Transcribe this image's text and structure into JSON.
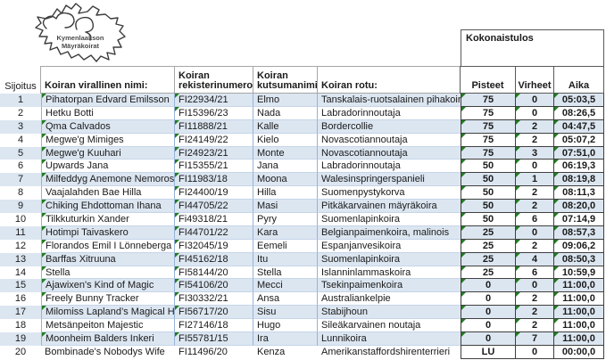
{
  "logo": {
    "line1": "Kymenlaakson",
    "line2": "Mäyräkoirat"
  },
  "headers": {
    "rank": "Sijoitus",
    "official_name": "Koiran virallinen nimi:",
    "reg_number": "Koiran\nrekisterinumero:",
    "call_name": "Koiran\nkutsumanimi:",
    "breed": "Koiran rotu:",
    "total": "Kokonaistulos",
    "points": "Pisteet",
    "faults": "Virheet",
    "time": "Aika"
  },
  "colors": {
    "band": "#dce6f1",
    "band_line": "#c5d5e8",
    "col_line": "#95b3d7",
    "head_line": "#a6a6a6",
    "res_line": "#3f3f3f",
    "flag": "#217c21",
    "text": "#1a1a1a"
  },
  "rows": [
    {
      "rank": "1",
      "name": "Pihatorpan Edvard Emilsson",
      "reg": "FI22934/21",
      "call": "Elmo",
      "breed": "Tanskalais-ruotsalainen pihakoira",
      "points": "75",
      "faults": "0",
      "time": "05:03,5",
      "flag_name": true,
      "flag_reg": true,
      "flag_results": true
    },
    {
      "rank": "2",
      "name": "Hetku Botti",
      "reg": "FI15396/23",
      "call": "Nada",
      "breed": "Labradorinnoutaja",
      "points": "75",
      "faults": "0",
      "time": "08:26,5",
      "flag_name": false,
      "flag_reg": true,
      "flag_results": true
    },
    {
      "rank": "3",
      "name": "Qma Calvados",
      "reg": "FI11888/21",
      "call": "Kalle",
      "breed": "Bordercollie",
      "points": "75",
      "faults": "2",
      "time": "04:47,5",
      "flag_name": true,
      "flag_reg": true,
      "flag_results": true
    },
    {
      "rank": "4",
      "name": "Megwe'g Mimiges",
      "reg": "FI24149/22",
      "call": "Kielo",
      "breed": "Novascotiannoutaja",
      "points": "75",
      "faults": "2",
      "time": "05:07,2",
      "flag_name": true,
      "flag_reg": true,
      "flag_results": true
    },
    {
      "rank": "5",
      "name": "Megwe'g Kuuhari",
      "reg": "FI24923/21",
      "call": "Monte",
      "breed": "Novascotiannoutaja",
      "points": "75",
      "faults": "3",
      "time": "07:51,0",
      "flag_name": true,
      "flag_reg": true,
      "flag_results": true
    },
    {
      "rank": "6",
      "name": "Upwards Jana",
      "reg": "FI15355/21",
      "call": "Jana",
      "breed": "Labradorinnoutaja",
      "points": "50",
      "faults": "0",
      "time": "06:19,3",
      "flag_name": true,
      "flag_reg": true,
      "flag_results": true
    },
    {
      "rank": "7",
      "name": "Milfeddyg Anemone Nemorosa",
      "reg": "FI11983/18",
      "call": "Moona",
      "breed": "Walesinspringerspanieli",
      "points": "50",
      "faults": "1",
      "time": "08:19,8",
      "flag_name": true,
      "flag_reg": true,
      "flag_results": true
    },
    {
      "rank": "8",
      "name": "Vaajalahden Bae Hilla",
      "reg": "FI24400/19",
      "call": "Hilla",
      "breed": "Suomenpystykorva",
      "points": "50",
      "faults": "2",
      "time": "08:11,3",
      "flag_name": false,
      "flag_reg": true,
      "flag_results": true
    },
    {
      "rank": "9",
      "name": "Chiking Ehdottoman Ihana",
      "reg": "FI44705/22",
      "call": "Masi",
      "breed": "Pitkäkarvainen mäyräkoira",
      "points": "50",
      "faults": "2",
      "time": "08:20,0",
      "flag_name": true,
      "flag_reg": true,
      "flag_results": true
    },
    {
      "rank": "10",
      "name": "Tilkkuturkin Xander",
      "reg": "Fi49318/21",
      "call": "Pyry",
      "breed": "Suomenlapinkoira",
      "points": "50",
      "faults": "6",
      "time": "07:14,9",
      "flag_name": true,
      "flag_reg": true,
      "flag_results": true
    },
    {
      "rank": "11",
      "name": "Hotimpi Taivaskero",
      "reg": "FI44701/22",
      "call": "Kara",
      "breed": "Belgianpaimenkoira, malinois",
      "points": "25",
      "faults": "0",
      "time": "08:57,3",
      "flag_name": true,
      "flag_reg": true,
      "flag_results": true
    },
    {
      "rank": "12",
      "name": "Florandos Emil I Lönneberga",
      "reg": "FI32045/19",
      "call": "Eemeli",
      "breed": "Espanjanvesikoira",
      "points": "25",
      "faults": "2",
      "time": "09:06,2",
      "flag_name": true,
      "flag_reg": true,
      "flag_results": true
    },
    {
      "rank": "13",
      "name": "Barffas Xitruuna",
      "reg": "FI45162/18",
      "call": "Itu",
      "breed": "Suomenlapinkoira",
      "points": "25",
      "faults": "4",
      "time": "08:50,3",
      "flag_name": true,
      "flag_reg": true,
      "flag_results": true
    },
    {
      "rank": "14",
      "name": "Stella",
      "reg": "FI58144/20",
      "call": "Stella",
      "breed": "Islanninlammaskoira",
      "points": "25",
      "faults": "6",
      "time": "10:59,9",
      "flag_name": true,
      "flag_reg": true,
      "flag_results": true
    },
    {
      "rank": "15",
      "name": "Ajawixen's Kind of Magic",
      "reg": "FI54106/20",
      "call": "Mecci",
      "breed": "Tsekinpaimenkoira",
      "points": "0",
      "faults": "0",
      "time": "11:00,0",
      "flag_name": true,
      "flag_reg": true,
      "flag_results": true
    },
    {
      "rank": "16",
      "name": "Freely Bunny Tracker",
      "reg": "FI30332/21",
      "call": "Ansa",
      "breed": "Australiankelpie",
      "points": "0",
      "faults": "2",
      "time": "11:00,0",
      "flag_name": true,
      "flag_reg": true,
      "flag_results": true
    },
    {
      "rank": "17",
      "name": "Milomiss Lapland’s Magical Halti",
      "reg": "FI56717/20",
      "call": "Sisu",
      "breed": "Stabijhoun",
      "points": "0",
      "faults": "2",
      "time": "11:00,0",
      "flag_name": true,
      "flag_reg": true,
      "flag_results": true
    },
    {
      "rank": "18",
      "name": "Metsänpeiton Majestic",
      "reg": "FI27146/18",
      "call": "Hugo",
      "breed": "Sileäkarvainen noutaja",
      "points": "0",
      "faults": "2",
      "time": "11:00,0",
      "flag_name": false,
      "flag_reg": false,
      "flag_results": true
    },
    {
      "rank": "19",
      "name": "Moonheim Balders Inkeri",
      "reg": "FI55781/15",
      "call": "Ira",
      "breed": "Lunnikoira",
      "points": "0",
      "faults": "7",
      "time": "11:00,0",
      "flag_name": true,
      "flag_reg": true,
      "flag_results": true
    },
    {
      "rank": "20",
      "name": "Bombinade's Nobodys Wife",
      "reg": "FI11496/20",
      "call": "Kenza",
      "breed": "Amerikanstaffordshirenterrieri",
      "points": "LU",
      "faults": "0",
      "time": "00:00,0",
      "flag_name": false,
      "flag_reg": false,
      "flag_results": false
    }
  ]
}
